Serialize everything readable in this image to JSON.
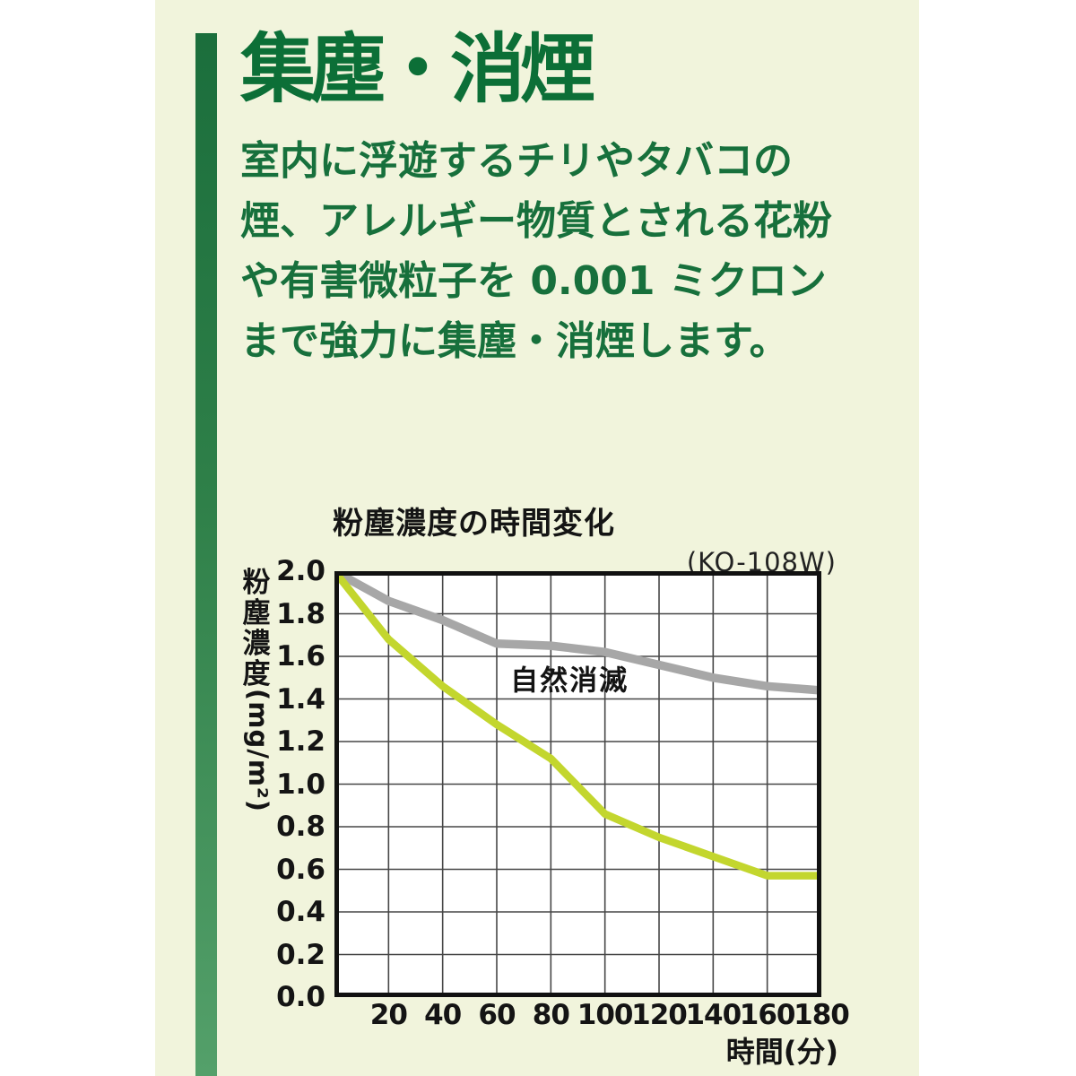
{
  "page": {
    "section_title": "集塵・消煙",
    "body_lines": [
      "室内に浮遊するチリやタバコの",
      "煙、アレルギー物質とされる花粉",
      "や有害微粒子を 0.001 ミクロン",
      "まで強力に集塵・消煙します。"
    ]
  },
  "colors": {
    "page_background": "#ffffff",
    "panel_background": "#f1f4dc",
    "accent_green_top": "#1b6e3c",
    "accent_green_bottom": "#54a06a",
    "heading_green": "#0c6f37",
    "body_green": "#17703c",
    "chart_text": "#141414",
    "chart_grid": "#474747",
    "chart_border": "#111111",
    "chart_plot_background": "#ffffff",
    "line_natural": "#a7a7a7",
    "line_product": "#c3d62e"
  },
  "chart_data": {
    "type": "line",
    "title": "粉塵濃度の時間変化",
    "subtitle": "(KO-108W)",
    "ylabel": "粉塵濃度(mg/m²)",
    "ylabel_kanji": "粉塵濃度",
    "ylabel_unit": "(mg/m²)",
    "xlabel": "時間(分)",
    "xlim": [
      0,
      180
    ],
    "ylim": [
      0,
      2.0
    ],
    "grid": true,
    "x": [
      0,
      20,
      40,
      60,
      80,
      100,
      120,
      140,
      160,
      180
    ],
    "x_tick_labels": [
      "20",
      "40",
      "60",
      "80",
      "100",
      "120",
      "140",
      "160",
      "180"
    ],
    "y_tick_labels": [
      "2.0",
      "1.8",
      "1.6",
      "1.4",
      "1.2",
      "1.0",
      "0.8",
      "0.6",
      "0.4",
      "0.2",
      "0.0"
    ],
    "series": [
      {
        "name": "自然消滅",
        "color_key": "line_natural",
        "stroke_width": 9.5,
        "values": [
          2.0,
          1.86,
          1.77,
          1.66,
          1.65,
          1.62,
          1.56,
          1.5,
          1.46,
          1.44
        ]
      },
      {
        "name": "KO-108W",
        "color_key": "line_product",
        "stroke_width": 8.5,
        "values": [
          2.0,
          1.68,
          1.46,
          1.28,
          1.12,
          0.86,
          0.75,
          0.66,
          0.57,
          0.57
        ]
      }
    ],
    "annotation": {
      "text": "自然消滅",
      "x": 65,
      "y": 1.56
    }
  }
}
